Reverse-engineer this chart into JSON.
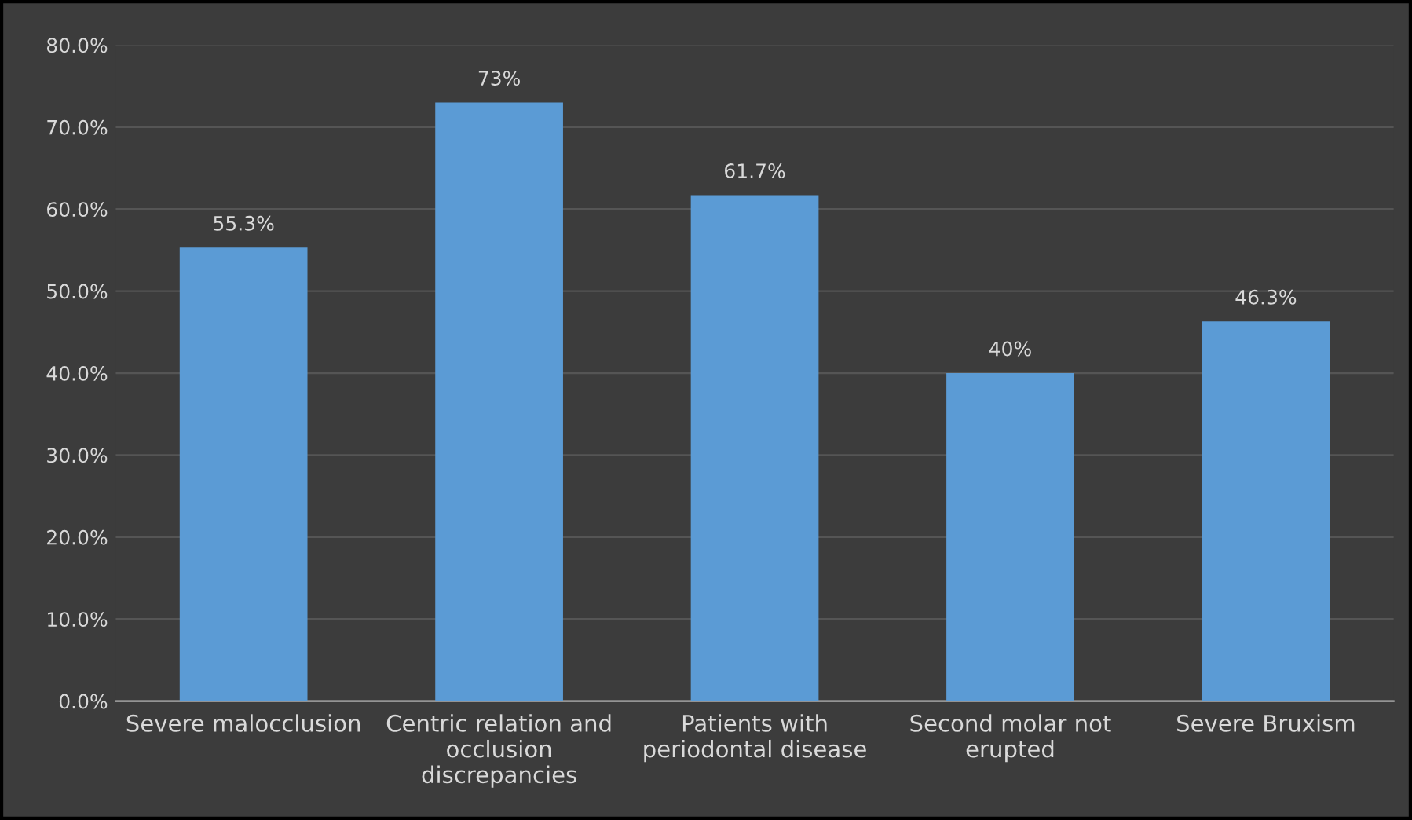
{
  "chart_data": {
    "type": "bar",
    "categories": [
      "Severe malocclusion",
      "Centric relation and occlusion discrepancies",
      "Patients with periodontal disease",
      "Second molar not erupted",
      "Severe Bruxism"
    ],
    "values": [
      55.3,
      73,
      61.7,
      40,
      46.3
    ],
    "value_labels": [
      "55.3%",
      "73%",
      "61.7%",
      "40%",
      "46.3%"
    ],
    "color": "#5b9bd5",
    "ylim": [
      0,
      80
    ],
    "yticks": [
      {
        "value": 0,
        "label": "0.0%"
      },
      {
        "value": 10,
        "label": "10.0%"
      },
      {
        "value": 20,
        "label": "20.0%"
      },
      {
        "value": 30,
        "label": "30.0%"
      },
      {
        "value": 40,
        "label": "40.0%"
      },
      {
        "value": 50,
        "label": "50.0%"
      },
      {
        "value": 60,
        "label": "60.0%"
      },
      {
        "value": 70,
        "label": "70.0%"
      },
      {
        "value": 80,
        "label": "80.0%"
      }
    ],
    "grid": "y"
  }
}
